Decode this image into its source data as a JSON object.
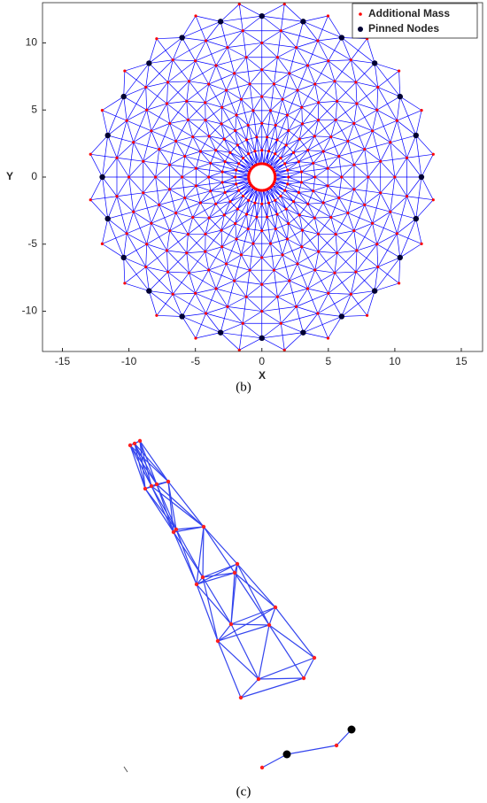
{
  "chart_data": {
    "type": "truss",
    "xlabel": "X",
    "ylabel": "Y",
    "xlim": [
      -16.5,
      16.6
    ],
    "ylim": [
      -13,
      13
    ],
    "xticks": [
      -15,
      -10,
      -5,
      0,
      5,
      10,
      15
    ],
    "yticks": [
      -10,
      -5,
      0,
      5,
      10
    ],
    "mesh_color": "#0000ff",
    "legend": "upper right",
    "series": [
      {
        "name": "Additional Mass",
        "color": "#ff0000",
        "rings": [
          {
            "r": 1,
            "count": 48,
            "offset": 90
          },
          {
            "r": 2,
            "count": 24,
            "offset": 90
          },
          {
            "r": 3,
            "count": 24,
            "offset": 97.5
          },
          {
            "r": 4,
            "count": 24,
            "offset": 90
          },
          {
            "r": 5,
            "count": 24,
            "offset": 97.5
          },
          {
            "r": 6,
            "count": 24,
            "offset": 90
          },
          {
            "r": 7,
            "count": 24,
            "offset": 97.5
          },
          {
            "r": 8,
            "count": 24,
            "offset": 90
          },
          {
            "r": 9,
            "count": 24,
            "offset": 97.5
          },
          {
            "r": 10,
            "count": 24,
            "offset": 90
          },
          {
            "r": 11,
            "count": 24,
            "offset": 97.5
          },
          {
            "r": 13,
            "count": 24,
            "offset": 97.5
          }
        ]
      },
      {
        "name": "Pinned Nodes",
        "color": "#000033",
        "rings": [
          {
            "r": 12,
            "count": 24,
            "offset": 90
          }
        ]
      }
    ]
  },
  "captions": [
    "(b)",
    "(c)"
  ]
}
